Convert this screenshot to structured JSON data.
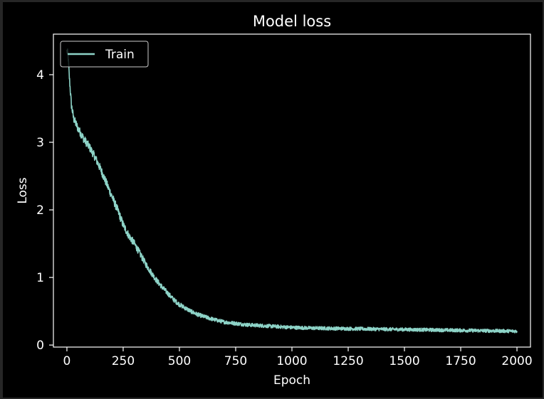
{
  "chart_data": {
    "type": "line",
    "title": "Model loss",
    "xlabel": "Epoch",
    "ylabel": "Loss",
    "xlim": [
      -60,
      2060
    ],
    "ylim": [
      -0.03,
      4.6
    ],
    "xticks": [
      0,
      250,
      500,
      750,
      1000,
      1250,
      1500,
      1750,
      2000
    ],
    "yticks": [
      0,
      1,
      2,
      3,
      4
    ],
    "grid": false,
    "legend": {
      "placement": "top-left",
      "entries": [
        "Train"
      ]
    },
    "colors": {
      "background": "#000000",
      "frame": "#262626",
      "axes": "#ffffff",
      "series": "#8dd3c7"
    },
    "series": [
      {
        "name": "Train",
        "color": "#8dd3c7",
        "noise": 0.06,
        "x": [
          0,
          5,
          10,
          20,
          30,
          50,
          75,
          100,
          125,
          150,
          175,
          200,
          225,
          250,
          275,
          300,
          325,
          350,
          375,
          400,
          425,
          450,
          475,
          500,
          525,
          550,
          575,
          600,
          650,
          700,
          750,
          800,
          850,
          900,
          950,
          1000,
          1100,
          1200,
          1300,
          1400,
          1500,
          1600,
          1700,
          1800,
          1900,
          2000
        ],
        "y": [
          4.35,
          4.3,
          4.0,
          3.55,
          3.35,
          3.2,
          3.05,
          2.93,
          2.78,
          2.6,
          2.4,
          2.2,
          2.0,
          1.78,
          1.62,
          1.5,
          1.35,
          1.2,
          1.07,
          0.95,
          0.85,
          0.76,
          0.67,
          0.6,
          0.55,
          0.5,
          0.46,
          0.43,
          0.38,
          0.34,
          0.32,
          0.3,
          0.29,
          0.28,
          0.27,
          0.26,
          0.25,
          0.245,
          0.24,
          0.235,
          0.23,
          0.225,
          0.22,
          0.215,
          0.21,
          0.205
        ]
      }
    ]
  }
}
